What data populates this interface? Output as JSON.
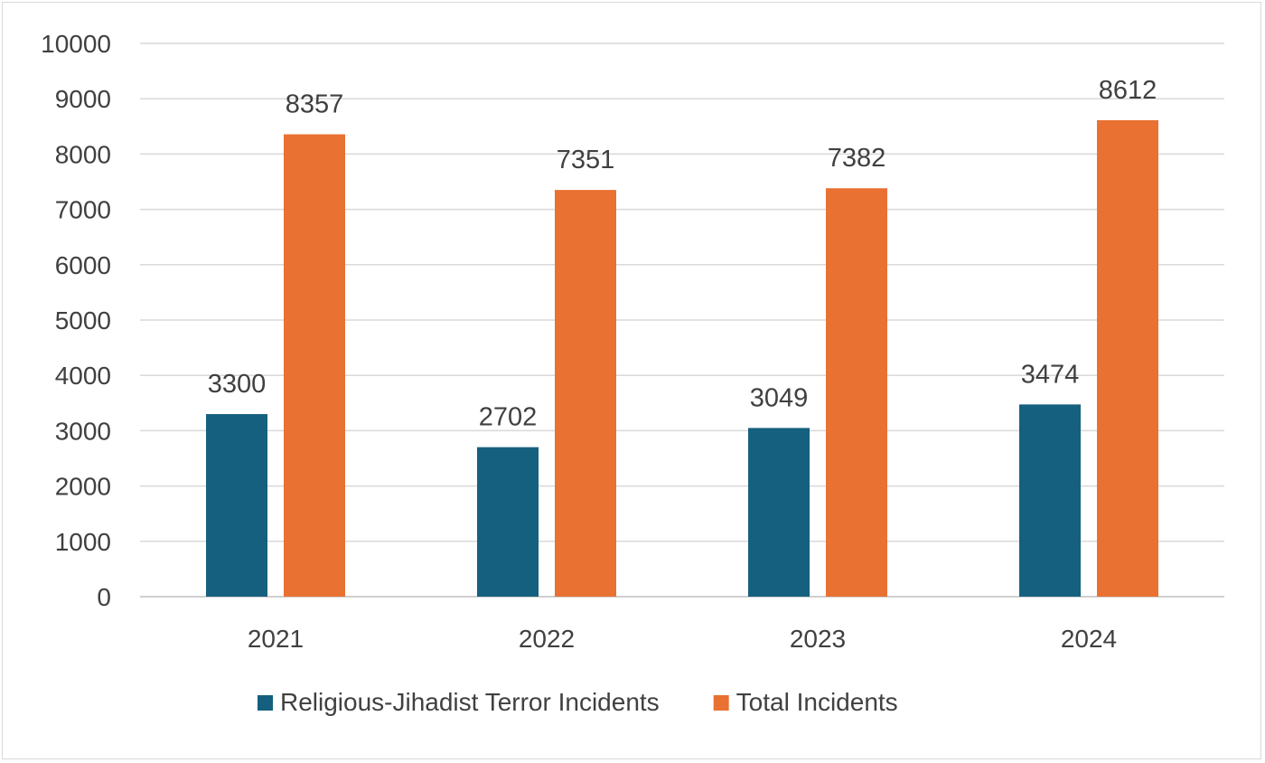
{
  "chart_data": {
    "type": "bar",
    "title": "",
    "xlabel": "",
    "ylabel": "",
    "categories": [
      "2021",
      "2022",
      "2023",
      "2024"
    ],
    "series": [
      {
        "name": "Religious-Jihadist Terror Incidents",
        "color": "#16607f",
        "values": [
          3300,
          2702,
          3049,
          3474
        ]
      },
      {
        "name": "Total Incidents",
        "color": "#e97132",
        "values": [
          8357,
          7351,
          7382,
          8612
        ]
      }
    ],
    "ylim": [
      0,
      10000
    ],
    "yticks": [
      0,
      1000,
      2000,
      3000,
      4000,
      5000,
      6000,
      7000,
      8000,
      9000,
      10000
    ],
    "grid": true,
    "data_labels": true,
    "legend_position": "bottom"
  }
}
